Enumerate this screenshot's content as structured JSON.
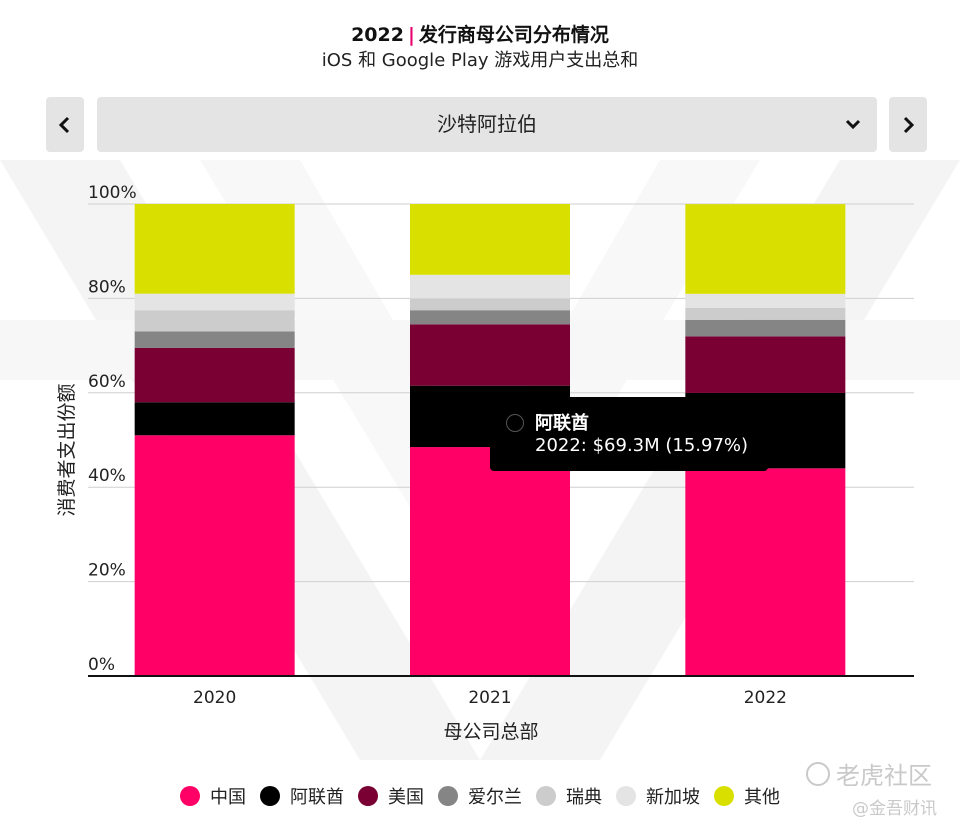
{
  "header": {
    "title_year": "2022",
    "title_sep": "|",
    "title_text": "发行商母公司分布情况",
    "subtitle": "iOS 和 Google Play 游戏用户支出总和"
  },
  "selector": {
    "value": "沙特阿拉伯",
    "prev_icon": "chevron-left-icon",
    "next_icon": "chevron-right-icon",
    "dropdown_icon": "chevron-down-icon"
  },
  "chart_data": {
    "type": "bar",
    "stacked": true,
    "percent": true,
    "categories": [
      "2020",
      "2021",
      "2022"
    ],
    "xlabel": "母公司总部",
    "ylabel": "消费者支出份额",
    "ylim": [
      0,
      100
    ],
    "yticks": [
      "0%",
      "20%",
      "40%",
      "60%",
      "80%",
      "100%"
    ],
    "grid": true,
    "series": [
      {
        "name": "中国",
        "color": "#ff0066",
        "values": [
          51,
          48.5,
          44
        ]
      },
      {
        "name": "阿联酋",
        "color": "#000000",
        "values": [
          7,
          13,
          15.97
        ]
      },
      {
        "name": "美国",
        "color": "#7a0033",
        "values": [
          11.5,
          13,
          12
        ]
      },
      {
        "name": "爱尔兰",
        "color": "#858585",
        "values": [
          3.5,
          3,
          3.5
        ]
      },
      {
        "name": "瑞典",
        "color": "#cccccc",
        "values": [
          4.5,
          2.5,
          2.5
        ]
      },
      {
        "name": "新加坡",
        "color": "#e4e4e4",
        "values": [
          3.5,
          5,
          3
        ]
      },
      {
        "name": "其他",
        "color": "#d9e000",
        "values": [
          19,
          15,
          19
        ]
      }
    ]
  },
  "tooltip": {
    "series": "阿联酋",
    "value_text": "2022: $69.3M (15.97%)"
  },
  "watermarks": {
    "brand": "老虎社区",
    "source": "@金吾财讯"
  }
}
